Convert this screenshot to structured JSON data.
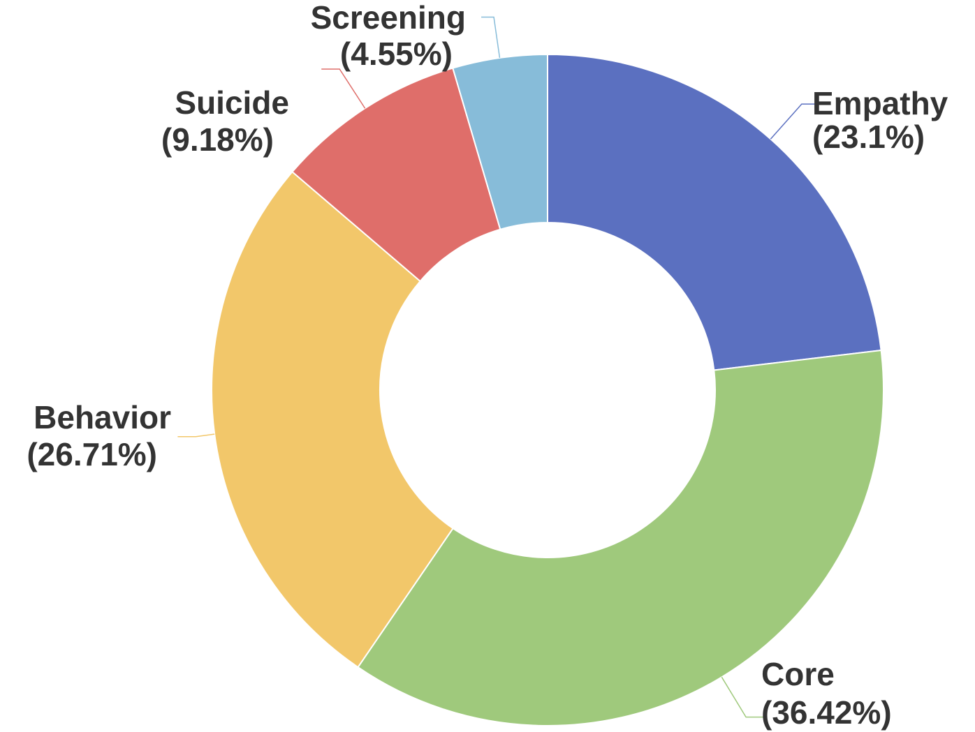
{
  "chart_data": {
    "type": "pie",
    "variant": "donut",
    "legend": "none",
    "labels_position": "outside",
    "slices": [
      {
        "name": "Empathy",
        "value": 23.1,
        "label_name": "Empathy",
        "label_pct": "(23.1%)",
        "color": "#5b70c0"
      },
      {
        "name": "Core",
        "value": 36.42,
        "label_name": "Core",
        "label_pct": "(36.42%)",
        "color": "#9fc97c"
      },
      {
        "name": "Behavior",
        "value": 26.71,
        "label_name": "Behavior",
        "label_pct": "(26.71%)",
        "color": "#f2c76a"
      },
      {
        "name": "Suicide",
        "value": 9.18,
        "label_name": "Suicide",
        "label_pct": "(9.18%)",
        "color": "#df6e6a"
      },
      {
        "name": "Screening",
        "value": 4.55,
        "label_name": "Screening",
        "label_pct": "(4.55%)",
        "color": "#87bcd9"
      }
    ]
  }
}
